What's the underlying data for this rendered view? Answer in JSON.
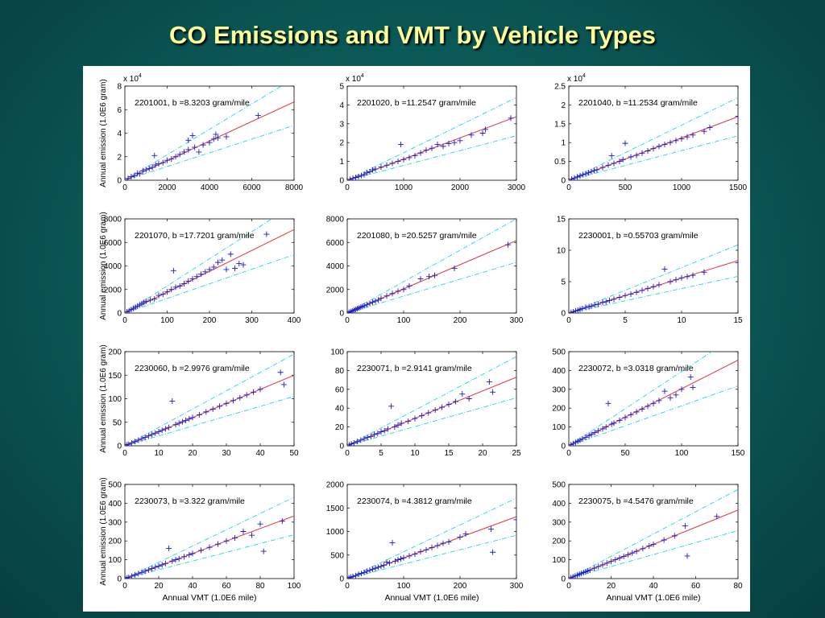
{
  "slide": {
    "title": "CO Emissions and VMT by Vehicle Types"
  },
  "colors": {
    "points": "#1a1acc",
    "fit_line": "#e8323c",
    "band_line": "#22d3ee"
  },
  "chart_data": [
    {
      "type": "scatter",
      "annotation": "2201001, b =8.3203 gram/mile",
      "xlim": [
        0,
        8000
      ],
      "ylim": [
        0,
        80000
      ],
      "xticks": [
        0,
        2000,
        4000,
        6000,
        8000
      ],
      "xticklabels": [
        "0",
        "2000",
        "4000",
        "6000",
        "8000"
      ],
      "yticks": [
        0,
        20000,
        40000,
        60000,
        80000
      ],
      "yticklabels": [
        "0",
        "2",
        "4",
        "6",
        "8"
      ],
      "exponent_label": "x 10^4",
      "ylabel": "Annual emission (1.0E6 gram)",
      "xlabel": "",
      "slope": 8.3203,
      "band": [
        0.7,
        1.3
      ],
      "x": [
        150,
        300,
        450,
        600,
        700,
        850,
        1000,
        1150,
        1300,
        1450,
        1600,
        1800,
        2000,
        2200,
        2400,
        2600,
        2800,
        3000,
        3200,
        3300,
        3500,
        3700,
        4000,
        4200,
        4300,
        4400,
        4800,
        6300,
        1400,
        3000
      ],
      "y": [
        1500,
        3000,
        4000,
        6000,
        5500,
        8000,
        9000,
        10000,
        11000,
        13000,
        14000,
        15000,
        17000,
        18000,
        20000,
        22000,
        24000,
        26000,
        38000,
        28000,
        24000,
        30000,
        32000,
        35000,
        39000,
        36000,
        37000,
        55000,
        21000,
        34000
      ]
    },
    {
      "type": "scatter",
      "annotation": "2201020, b =11.2547 gram/mile",
      "xlim": [
        0,
        3000
      ],
      "ylim": [
        0,
        50000
      ],
      "xticks": [
        0,
        1000,
        2000,
        3000
      ],
      "xticklabels": [
        "0",
        "1000",
        "2000",
        "3000"
      ],
      "yticks": [
        0,
        10000,
        20000,
        30000,
        40000,
        50000
      ],
      "yticklabels": [
        "0",
        "1",
        "2",
        "3",
        "4",
        "5"
      ],
      "exponent_label": "x 10^4",
      "ylabel": "",
      "xlabel": "",
      "slope": 11.2547,
      "band": [
        0.7,
        1.3
      ],
      "x": [
        50,
        100,
        150,
        200,
        250,
        300,
        350,
        400,
        450,
        500,
        600,
        700,
        800,
        900,
        950,
        1000,
        1100,
        1200,
        1300,
        1400,
        1500,
        1600,
        1700,
        1800,
        1900,
        2000,
        2200,
        2400,
        2450,
        2900
      ],
      "y": [
        500,
        1000,
        1500,
        2000,
        2500,
        3000,
        4000,
        4500,
        5500,
        6000,
        7000,
        8000,
        9000,
        10000,
        19000,
        11000,
        12000,
        13000,
        14500,
        16000,
        17000,
        19000,
        18000,
        19500,
        20000,
        21000,
        24000,
        25000,
        27000,
        33000
      ]
    },
    {
      "type": "scatter",
      "annotation": "2201040, b =11.2534 gram/mile",
      "xlim": [
        0,
        1500
      ],
      "ylim": [
        0,
        25000
      ],
      "xticks": [
        0,
        500,
        1000,
        1500
      ],
      "xticklabels": [
        "0",
        "500",
        "1000",
        "1500"
      ],
      "yticks": [
        0,
        5000,
        10000,
        15000,
        20000,
        25000
      ],
      "yticklabels": [
        "0",
        "0.5",
        "1",
        "1.5",
        "2",
        "2.5"
      ],
      "exponent_label": "x 10^4",
      "ylabel": "",
      "xlabel": "",
      "slope": 11.2534,
      "band": [
        0.7,
        1.3
      ],
      "x": [
        25,
        50,
        75,
        100,
        125,
        150,
        175,
        200,
        225,
        250,
        300,
        350,
        380,
        400,
        450,
        480,
        500,
        550,
        600,
        650,
        700,
        750,
        800,
        850,
        900,
        950,
        1000,
        1050,
        1100,
        1200,
        1250,
        1500
      ],
      "y": [
        300,
        600,
        900,
        1200,
        1500,
        1700,
        2000,
        2300,
        2600,
        2800,
        3400,
        4000,
        6500,
        4500,
        5000,
        5500,
        9800,
        6200,
        6600,
        7200,
        7800,
        8400,
        9000,
        9500,
        10000,
        10500,
        11000,
        11500,
        12000,
        13000,
        14000,
        17000
      ]
    },
    {
      "type": "scatter",
      "annotation": "2201070, b =17.7201 gram/mile",
      "xlim": [
        0,
        400
      ],
      "ylim": [
        0,
        8000
      ],
      "xticks": [
        0,
        100,
        200,
        300,
        400
      ],
      "xticklabels": [
        "0",
        "100",
        "200",
        "300",
        "400"
      ],
      "yticks": [
        0,
        2000,
        4000,
        6000,
        8000
      ],
      "yticklabels": [
        "0",
        "2000",
        "4000",
        "6000",
        "8000"
      ],
      "exponent_label": "",
      "ylabel": "Annual emission (1.0E6 gram)",
      "xlabel": "",
      "slope": 17.7201,
      "band": [
        0.7,
        1.3
      ],
      "x": [
        5,
        10,
        15,
        20,
        25,
        30,
        35,
        40,
        45,
        50,
        60,
        70,
        80,
        90,
        100,
        110,
        120,
        130,
        140,
        150,
        160,
        170,
        180,
        190,
        200,
        210,
        220,
        230,
        240,
        250,
        260,
        270,
        280,
        335,
        115
      ],
      "y": [
        100,
        200,
        300,
        400,
        500,
        600,
        700,
        800,
        900,
        1000,
        1100,
        1200,
        1500,
        1600,
        1800,
        2000,
        2200,
        2300,
        2500,
        2700,
        2900,
        3100,
        3300,
        3500,
        3700,
        3900,
        4300,
        4500,
        3700,
        5000,
        3800,
        4200,
        4100,
        6700,
        3600
      ]
    },
    {
      "type": "scatter",
      "annotation": "2201080, b =20.5257 gram/mile",
      "xlim": [
        0,
        300
      ],
      "ylim": [
        0,
        8000
      ],
      "xticks": [
        0,
        100,
        200,
        300
      ],
      "xticklabels": [
        "0",
        "100",
        "200",
        "300"
      ],
      "yticks": [
        0,
        2000,
        4000,
        6000,
        8000
      ],
      "yticklabels": [
        "0",
        "2000",
        "4000",
        "6000",
        "8000"
      ],
      "exponent_label": "",
      "ylabel": "",
      "xlabel": "",
      "slope": 20.5257,
      "band": [
        0.7,
        1.3
      ],
      "x": [
        3,
        6,
        9,
        12,
        15,
        18,
        21,
        24,
        27,
        30,
        35,
        40,
        45,
        50,
        55,
        60,
        70,
        80,
        90,
        100,
        110,
        130,
        145,
        155,
        190,
        285
      ],
      "y": [
        60,
        120,
        180,
        250,
        300,
        380,
        430,
        500,
        550,
        620,
        700,
        820,
        920,
        1020,
        1100,
        1250,
        1450,
        1650,
        1850,
        2000,
        2300,
        2900,
        3100,
        3200,
        3800,
        5800
      ]
    },
    {
      "type": "scatter",
      "annotation": "2230001, b =0.55703 gram/mile",
      "xlim": [
        0,
        15
      ],
      "ylim": [
        0,
        15
      ],
      "xticks": [
        0,
        5,
        10,
        15
      ],
      "xticklabels": [
        "0",
        "5",
        "10",
        "15"
      ],
      "yticks": [
        0,
        5,
        10,
        15
      ],
      "yticklabels": [
        "0",
        "5",
        "10",
        "15"
      ],
      "exponent_label": "",
      "ylabel": "",
      "xlabel": "",
      "slope": 0.55703,
      "band": [
        0.7,
        1.3
      ],
      "x": [
        0.2,
        0.4,
        0.6,
        0.8,
        1,
        1.2,
        1.5,
        1.8,
        2,
        2.3,
        2.6,
        3,
        3.3,
        3.6,
        4,
        4.5,
        5,
        5.5,
        6,
        6.5,
        7,
        7.5,
        8,
        8.5,
        9,
        9.5,
        10,
        10.5,
        11,
        12,
        15
      ],
      "y": [
        0.1,
        0.2,
        0.35,
        0.45,
        0.6,
        0.7,
        0.9,
        1.0,
        1.1,
        1.3,
        1.4,
        1.7,
        1.8,
        2.0,
        2.2,
        2.5,
        2.8,
        3.0,
        3.3,
        3.6,
        3.9,
        4.2,
        4.5,
        7.0,
        5.0,
        5.3,
        5.6,
        5.8,
        6.0,
        6.5,
        8.0
      ]
    },
    {
      "type": "scatter",
      "annotation": "2230060, b =2.9976 gram/mile",
      "xlim": [
        0,
        50
      ],
      "ylim": [
        0,
        200
      ],
      "xticks": [
        0,
        10,
        20,
        30,
        40,
        50
      ],
      "xticklabels": [
        "0",
        "10",
        "20",
        "30",
        "40",
        "50"
      ],
      "yticks": [
        0,
        50,
        100,
        150,
        200
      ],
      "yticklabels": [
        "0",
        "50",
        "100",
        "150",
        "200"
      ],
      "exponent_label": "",
      "ylabel": "Annual emission (1.0E6 gram)",
      "xlabel": "",
      "slope": 2.9976,
      "band": [
        0.7,
        1.3
      ],
      "x": [
        0.5,
        1,
        2,
        3,
        4,
        5,
        6,
        7,
        8,
        9,
        10,
        11,
        12,
        13,
        14,
        15,
        16,
        17,
        18,
        19,
        20,
        22,
        24,
        26,
        28,
        30,
        32,
        34,
        36,
        38,
        40,
        46,
        47
      ],
      "y": [
        2,
        3,
        6,
        9,
        12,
        15,
        18,
        21,
        24,
        27,
        30,
        33,
        36,
        39,
        95,
        45,
        48,
        51,
        54,
        57,
        60,
        66,
        72,
        78,
        84,
        90,
        96,
        102,
        108,
        114,
        120,
        156,
        130
      ]
    },
    {
      "type": "scatter",
      "annotation": "2230071, b =2.9141 gram/mile",
      "xlim": [
        0,
        25
      ],
      "ylim": [
        0,
        100
      ],
      "xticks": [
        0,
        5,
        10,
        15,
        20,
        25
      ],
      "xticklabels": [
        "0",
        "5",
        "10",
        "15",
        "20",
        "25"
      ],
      "yticks": [
        0,
        20,
        40,
        60,
        80,
        100
      ],
      "yticklabels": [
        "0",
        "20",
        "40",
        "60",
        "80",
        "100"
      ],
      "exponent_label": "",
      "ylabel": "",
      "xlabel": "",
      "slope": 2.9141,
      "band": [
        0.7,
        1.3
      ],
      "x": [
        0.3,
        0.6,
        1,
        1.5,
        2,
        2.5,
        3,
        3.5,
        4,
        4.5,
        5,
        5.5,
        6,
        6.5,
        7,
        7.5,
        8,
        9,
        10,
        11,
        12,
        13,
        14,
        15,
        16,
        17,
        18,
        21,
        21.5
      ],
      "y": [
        1,
        2,
        3,
        4.5,
        6,
        7.5,
        9,
        10,
        12,
        13,
        15,
        16,
        18,
        42,
        20,
        22,
        24,
        26,
        29,
        32,
        35,
        38,
        41,
        44,
        47,
        55,
        50,
        68,
        57
      ]
    },
    {
      "type": "scatter",
      "annotation": "2230072, b =3.0318 gram/mile",
      "xlim": [
        0,
        150
      ],
      "ylim": [
        0,
        500
      ],
      "xticks": [
        0,
        50,
        100,
        150
      ],
      "xticklabels": [
        "0",
        "50",
        "100",
        "150"
      ],
      "yticks": [
        0,
        100,
        200,
        300,
        400,
        500
      ],
      "yticklabels": [
        "0",
        "100",
        "200",
        "300",
        "400",
        "500"
      ],
      "exponent_label": "",
      "ylabel": "",
      "xlabel": "",
      "slope": 3.0318,
      "band": [
        0.7,
        1.3
      ],
      "x": [
        2,
        4,
        6,
        8,
        10,
        12,
        15,
        18,
        20,
        23,
        26,
        30,
        33,
        35,
        38,
        40,
        45,
        50,
        55,
        60,
        65,
        70,
        75,
        80,
        85,
        90,
        95,
        100,
        108,
        110
      ],
      "y": [
        6,
        12,
        18,
        24,
        30,
        36,
        45,
        55,
        60,
        70,
        80,
        90,
        100,
        225,
        115,
        120,
        135,
        150,
        165,
        180,
        195,
        210,
        225,
        240,
        290,
        255,
        270,
        300,
        365,
        310
      ]
    },
    {
      "type": "scatter",
      "annotation": "2230073, b =3.322 gram/mile",
      "xlim": [
        0,
        100
      ],
      "ylim": [
        0,
        500
      ],
      "xticks": [
        0,
        20,
        40,
        60,
        80,
        100
      ],
      "xticklabels": [
        "0",
        "20",
        "40",
        "60",
        "80",
        "100"
      ],
      "yticks": [
        0,
        100,
        200,
        300,
        400,
        500
      ],
      "yticklabels": [
        "0",
        "100",
        "200",
        "300",
        "400",
        "500"
      ],
      "exponent_label": "",
      "ylabel": "Annual emission (1.0E6 gram)",
      "xlabel": "Annual VMT (1.0E6 mile)",
      "slope": 3.322,
      "band": [
        0.7,
        1.3
      ],
      "x": [
        1,
        2,
        4,
        6,
        8,
        10,
        12,
        14,
        16,
        18,
        20,
        22,
        24,
        26,
        28,
        30,
        32,
        35,
        38,
        40,
        45,
        50,
        55,
        60,
        65,
        70,
        75,
        80,
        82,
        93
      ],
      "y": [
        3,
        6,
        13,
        20,
        26,
        33,
        40,
        46,
        53,
        60,
        66,
        73,
        80,
        160,
        93,
        100,
        106,
        116,
        126,
        133,
        150,
        166,
        183,
        200,
        216,
        250,
        230,
        290,
        145,
        305
      ]
    },
    {
      "type": "scatter",
      "annotation": "2230074, b =4.3812 gram/mile",
      "xlim": [
        0,
        300
      ],
      "ylim": [
        0,
        2000
      ],
      "xticks": [
        0,
        100,
        200,
        300
      ],
      "xticklabels": [
        "0",
        "100",
        "200",
        "300"
      ],
      "yticks": [
        0,
        500,
        1000,
        1500,
        2000
      ],
      "yticklabels": [
        "0",
        "500",
        "1000",
        "1500",
        "2000"
      ],
      "exponent_label": "",
      "ylabel": "",
      "xlabel": "Annual VMT (1.0E6 mile)",
      "slope": 4.3812,
      "band": [
        0.7,
        1.3
      ],
      "x": [
        3,
        6,
        10,
        15,
        20,
        25,
        30,
        35,
        40,
        45,
        50,
        55,
        60,
        65,
        70,
        75,
        80,
        85,
        90,
        95,
        100,
        110,
        120,
        130,
        140,
        150,
        160,
        170,
        180,
        200,
        210,
        255,
        258,
        300
      ],
      "y": [
        15,
        30,
        45,
        65,
        90,
        110,
        130,
        155,
        175,
        200,
        220,
        240,
        260,
        285,
        350,
        330,
        760,
        370,
        400,
        420,
        440,
        480,
        520,
        570,
        610,
        660,
        700,
        750,
        780,
        880,
        950,
        1050,
        560,
        1250
      ]
    },
    {
      "type": "scatter",
      "annotation": "2230075, b =4.5476 gram/mile",
      "xlim": [
        0,
        80
      ],
      "ylim": [
        0,
        500
      ],
      "xticks": [
        0,
        20,
        40,
        60,
        80
      ],
      "xticklabels": [
        "0",
        "20",
        "40",
        "60",
        "80"
      ],
      "yticks": [
        0,
        100,
        200,
        300,
        400,
        500
      ],
      "yticklabels": [
        "0",
        "100",
        "200",
        "300",
        "400",
        "500"
      ],
      "exponent_label": "",
      "ylabel": "",
      "xlabel": "Annual VMT (1.0E6 mile)",
      "slope": 4.5476,
      "band": [
        0.7,
        1.3
      ],
      "x": [
        1,
        2,
        3,
        4,
        5,
        6,
        7,
        8,
        9,
        10,
        12,
        14,
        16,
        18,
        20,
        22,
        24,
        26,
        28,
        30,
        32,
        35,
        38,
        40,
        45,
        50,
        55,
        56,
        70
      ],
      "y": [
        5,
        9,
        14,
        18,
        23,
        27,
        32,
        36,
        41,
        45,
        55,
        64,
        73,
        82,
        91,
        100,
        109,
        118,
        127,
        136,
        145,
        159,
        173,
        182,
        205,
        227,
        280,
        120,
        330
      ]
    }
  ]
}
